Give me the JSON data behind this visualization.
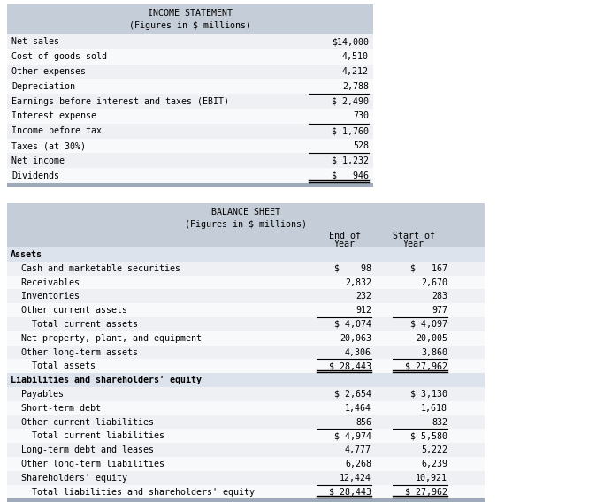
{
  "income_title1": "INCOME STATEMENT",
  "income_title2": "(Figures in $ millions)",
  "income_rows": [
    {
      "label": "Net sales",
      "value": "$14,000",
      "top_border": false,
      "double_bottom": false
    },
    {
      "label": "Cost of goods sold",
      "value": "4,510",
      "top_border": false,
      "double_bottom": false
    },
    {
      "label": "Other expenses",
      "value": "4,212",
      "top_border": false,
      "double_bottom": false
    },
    {
      "label": "Depreciation",
      "value": "2,788",
      "top_border": false,
      "double_bottom": false
    },
    {
      "label": "Earnings before interest and taxes (EBIT)",
      "value": "$ 2,490",
      "top_border": true,
      "double_bottom": false
    },
    {
      "label": "Interest expense",
      "value": "730",
      "top_border": false,
      "double_bottom": false
    },
    {
      "label": "Income before tax",
      "value": "$ 1,760",
      "top_border": true,
      "double_bottom": false
    },
    {
      "label": "Taxes (at 30%)",
      "value": "528",
      "top_border": false,
      "double_bottom": false
    },
    {
      "label": "Net income",
      "value": "$ 1,232",
      "top_border": true,
      "double_bottom": false
    },
    {
      "label": "Dividends",
      "value": "$   946",
      "top_border": false,
      "double_bottom": true
    }
  ],
  "balance_title1": "BALANCE SHEET",
  "balance_title2": "(Figures in $ millions)",
  "balance_rows": [
    {
      "label": "Assets",
      "val1": "",
      "val2": "",
      "bold": true,
      "section_bg": true,
      "top_border": false,
      "double_bottom": false
    },
    {
      "label": "  Cash and marketable securities",
      "val1": "$    98",
      "val2": "$   167",
      "bold": false,
      "section_bg": false,
      "top_border": false,
      "double_bottom": false
    },
    {
      "label": "  Receivables",
      "val1": "2,832",
      "val2": "2,670",
      "bold": false,
      "section_bg": false,
      "top_border": false,
      "double_bottom": false
    },
    {
      "label": "  Inventories",
      "val1": "232",
      "val2": "283",
      "bold": false,
      "section_bg": false,
      "top_border": false,
      "double_bottom": false
    },
    {
      "label": "  Other current assets",
      "val1": "912",
      "val2": "977",
      "bold": false,
      "section_bg": false,
      "top_border": false,
      "double_bottom": false
    },
    {
      "label": "    Total current assets",
      "val1": "$ 4,074",
      "val2": "$ 4,097",
      "bold": false,
      "section_bg": false,
      "top_border": true,
      "double_bottom": false
    },
    {
      "label": "  Net property, plant, and equipment",
      "val1": "20,063",
      "val2": "20,005",
      "bold": false,
      "section_bg": false,
      "top_border": false,
      "double_bottom": false
    },
    {
      "label": "  Other long-term assets",
      "val1": "4,306",
      "val2": "3,860",
      "bold": false,
      "section_bg": false,
      "top_border": false,
      "double_bottom": false
    },
    {
      "label": "    Total assets",
      "val1": "$ 28,443",
      "val2": "$ 27,962",
      "bold": false,
      "section_bg": false,
      "top_border": true,
      "double_bottom": true
    },
    {
      "label": "Liabilities and shareholders' equity",
      "val1": "",
      "val2": "",
      "bold": true,
      "section_bg": true,
      "top_border": false,
      "double_bottom": false
    },
    {
      "label": "  Payables",
      "val1": "$ 2,654",
      "val2": "$ 3,130",
      "bold": false,
      "section_bg": false,
      "top_border": false,
      "double_bottom": false
    },
    {
      "label": "  Short-term debt",
      "val1": "1,464",
      "val2": "1,618",
      "bold": false,
      "section_bg": false,
      "top_border": false,
      "double_bottom": false
    },
    {
      "label": "  Other current liabilities",
      "val1": "856",
      "val2": "832",
      "bold": false,
      "section_bg": false,
      "top_border": false,
      "double_bottom": false
    },
    {
      "label": "    Total current liabilities",
      "val1": "$ 4,974",
      "val2": "$ 5,580",
      "bold": false,
      "section_bg": false,
      "top_border": true,
      "double_bottom": false
    },
    {
      "label": "  Long-term debt and leases",
      "val1": "4,777",
      "val2": "5,222",
      "bold": false,
      "section_bg": false,
      "top_border": false,
      "double_bottom": false
    },
    {
      "label": "  Other long-term liabilities",
      "val1": "6,268",
      "val2": "6,239",
      "bold": false,
      "section_bg": false,
      "top_border": false,
      "double_bottom": false
    },
    {
      "label": "  Shareholders' equity",
      "val1": "12,424",
      "val2": "10,921",
      "bold": false,
      "section_bg": false,
      "top_border": false,
      "double_bottom": false
    },
    {
      "label": "    Total liabilities and shareholders' equity",
      "val1": "$ 28,443",
      "val2": "$ 27,962",
      "bold": false,
      "section_bg": false,
      "top_border": true,
      "double_bottom": true
    }
  ],
  "header_bg": "#c5cdd8",
  "section_bg": "#dde3ec",
  "row_bg_light": "#eef0f4",
  "row_bg_white": "#f8f9fa",
  "bottom_bar_color": "#9eaaba",
  "font_size": 7.2
}
